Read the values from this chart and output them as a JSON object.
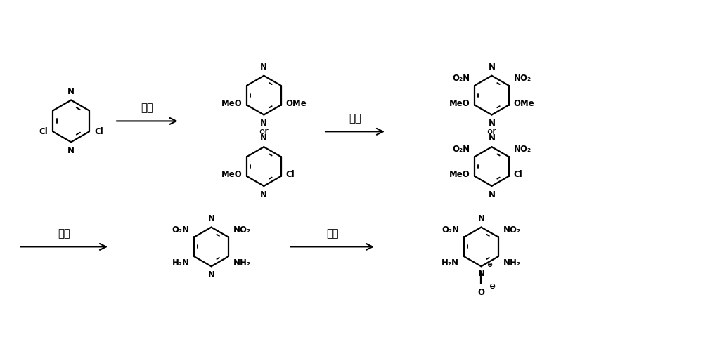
{
  "bg_color": "#ffffff",
  "line_color": "#000000",
  "arrow_label_1": "取代",
  "arrow_label_2": "硭化",
  "arrow_label_3": "氨解",
  "arrow_label_4": "氧化",
  "figsize": [
    10.0,
    4.97
  ],
  "dpi": 100
}
